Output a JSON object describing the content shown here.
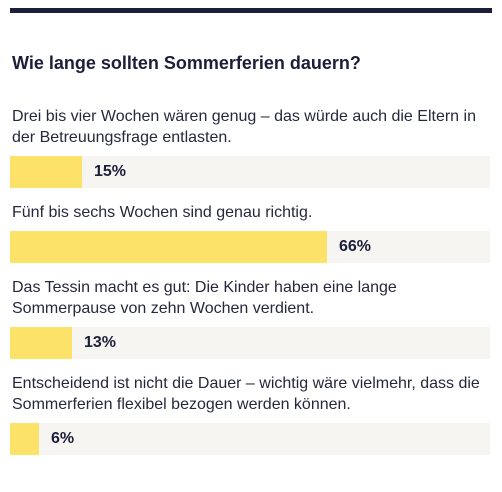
{
  "poll": {
    "title": "Wie lange sollten Sommerferien dauern?"
  },
  "chart_data": {
    "type": "bar",
    "title": "Wie lange sollten Sommerferien dauern?",
    "categories": [
      "Drei bis vier Wochen wären genug – das würde auch die Eltern in der Betreuungsfrage entlasten.",
      "Fünf bis sechs Wochen sind genau richtig.",
      "Das Tessin macht es gut: Die Kinder haben eine lange Sommerpause von zehn Wochen verdient.",
      "Entscheidend ist nicht die Dauer – wichtig wäre vielmehr, dass die Sommerferien flexibel bezogen werden können."
    ],
    "values": [
      15,
      66,
      13,
      6
    ],
    "value_labels": [
      "15%",
      "66%",
      "13%",
      "6%"
    ],
    "unit": "%",
    "ylim": [
      0,
      100
    ],
    "orientation": "horizontal",
    "grid": false,
    "bar_color": "#fde26a",
    "track_color": "#f6f5f2",
    "accent_color": "#1c1f3a"
  }
}
